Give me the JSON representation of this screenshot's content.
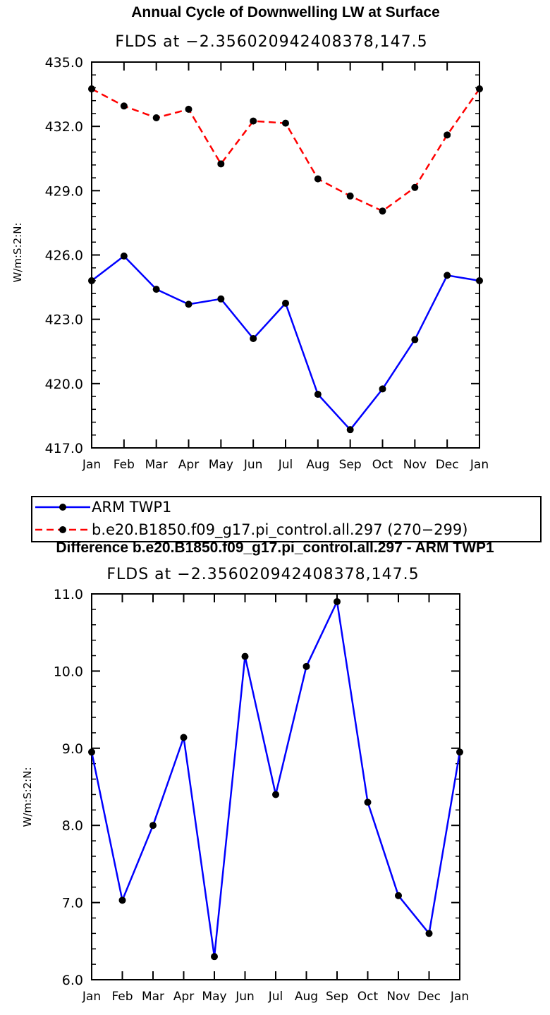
{
  "chart_data": [
    {
      "type": "line",
      "title": "Annual Cycle of Downwelling LW at Surface",
      "subtitle": "FLDS at −2.356020942408378,147.5",
      "xlabel": "",
      "ylabel": "W/m:S:2:N:",
      "categories": [
        "Jan",
        "Feb",
        "Mar",
        "Apr",
        "May",
        "Jun",
        "Jul",
        "Aug",
        "Sep",
        "Oct",
        "Nov",
        "Dec",
        "Jan"
      ],
      "ylim": [
        417.0,
        435.0
      ],
      "yticks": [
        "417.0",
        "420.0",
        "423.0",
        "426.0",
        "429.0",
        "432.0",
        "435.0"
      ],
      "series": [
        {
          "name": "ARM TWP1",
          "color": "#0000ff",
          "dash": "solid",
          "values": [
            424.8,
            425.95,
            424.4,
            423.7,
            423.95,
            422.1,
            423.75,
            419.5,
            417.85,
            419.75,
            422.05,
            425.05,
            424.8
          ]
        },
        {
          "name": "b.e20.B1850.f09_g17.pi_control.all.297 (270−299)",
          "color": "#ff0000",
          "dash": "dashed",
          "values": [
            433.75,
            432.95,
            432.4,
            432.8,
            430.25,
            432.25,
            432.15,
            429.55,
            428.75,
            428.05,
            429.15,
            431.6,
            433.75
          ]
        }
      ]
    },
    {
      "type": "line",
      "title": "Difference b.e20.B1850.f09_g17.pi_control.all.297 - ARM TWP1",
      "subtitle": "FLDS at −2.356020942408378,147.5",
      "xlabel": "",
      "ylabel": "W/m:S:2:N:",
      "categories": [
        "Jan",
        "Feb",
        "Mar",
        "Apr",
        "May",
        "Jun",
        "Jul",
        "Aug",
        "Sep",
        "Oct",
        "Nov",
        "Dec",
        "Jan"
      ],
      "ylim": [
        6.0,
        11.0
      ],
      "yticks": [
        "6.0",
        "7.0",
        "8.0",
        "9.0",
        "10.0",
        "11.0"
      ],
      "series": [
        {
          "name": "Difference",
          "color": "#0000ff",
          "dash": "solid",
          "values": [
            8.95,
            7.03,
            8.0,
            9.14,
            6.3,
            10.19,
            8.4,
            10.06,
            10.9,
            8.3,
            7.09,
            6.6,
            8.95
          ]
        }
      ]
    }
  ]
}
